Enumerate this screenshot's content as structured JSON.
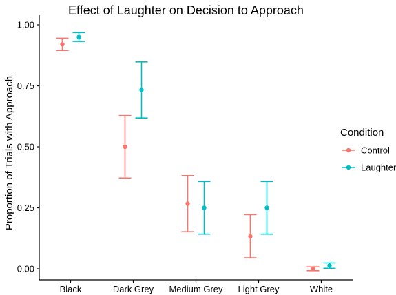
{
  "chart_data": {
    "type": "scatter",
    "title": "Effect of Laughter on Decision to Approach",
    "xlabel": "",
    "ylabel": "Proportion of Trials with Approach",
    "categories": [
      "Black",
      "Dark Grey",
      "Medium Grey",
      "Light Grey",
      "White"
    ],
    "ylim": [
      0,
      1
    ],
    "yticks": [
      "0.00",
      "0.25",
      "0.50",
      "0.75",
      "1.00"
    ],
    "error_bars": true,
    "grid": false,
    "legend_position": "right",
    "legend_title": "Condition",
    "series": [
      {
        "name": "Control",
        "color": "#F8766D",
        "values": [
          0.92,
          0.5,
          0.267,
          0.133,
          0.0
        ],
        "lower": [
          0.895,
          0.372,
          0.152,
          0.045,
          -0.008
        ],
        "upper": [
          0.945,
          0.628,
          0.382,
          0.222,
          0.008
        ]
      },
      {
        "name": "Laughter",
        "color": "#00BFC4",
        "values": [
          0.95,
          0.733,
          0.25,
          0.25,
          0.013
        ],
        "lower": [
          0.932,
          0.618,
          0.142,
          0.142,
          0.002
        ],
        "upper": [
          0.968,
          0.848,
          0.358,
          0.358,
          0.024
        ]
      }
    ]
  }
}
